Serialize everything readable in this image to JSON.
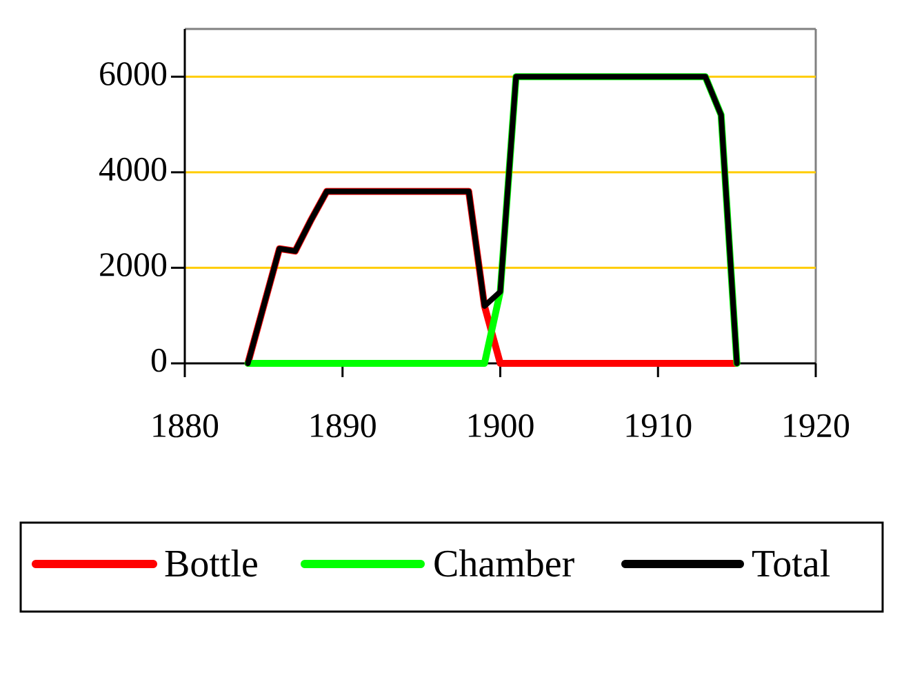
{
  "chart_data": {
    "type": "line",
    "x": [
      1884,
      1885,
      1886,
      1887,
      1888,
      1889,
      1890,
      1891,
      1892,
      1893,
      1894,
      1895,
      1896,
      1897,
      1898,
      1899,
      1900,
      1901,
      1902,
      1903,
      1904,
      1905,
      1906,
      1907,
      1908,
      1909,
      1910,
      1911,
      1912,
      1913,
      1914,
      1915
    ],
    "series": [
      {
        "name": "Bottle",
        "color": "#ff0000",
        "values": [
          0,
          1200,
          2400,
          2350,
          3000,
          3600,
          3600,
          3600,
          3600,
          3600,
          3600,
          3600,
          3600,
          3600,
          3600,
          1200,
          0,
          0,
          0,
          0,
          0,
          0,
          0,
          0,
          0,
          0,
          0,
          0,
          0,
          0,
          0,
          0
        ]
      },
      {
        "name": "Chamber",
        "color": "#00ff00",
        "values": [
          0,
          0,
          0,
          0,
          0,
          0,
          0,
          0,
          0,
          0,
          0,
          0,
          0,
          0,
          0,
          0,
          1500,
          6000,
          6000,
          6000,
          6000,
          6000,
          6000,
          6000,
          6000,
          6000,
          6000,
          6000,
          6000,
          6000,
          5200,
          0
        ]
      },
      {
        "name": "Total",
        "color": "#000000",
        "values": [
          0,
          1200,
          2400,
          2350,
          3000,
          3600,
          3600,
          3600,
          3600,
          3600,
          3600,
          3600,
          3600,
          3600,
          3600,
          1200,
          1500,
          6000,
          6000,
          6000,
          6000,
          6000,
          6000,
          6000,
          6000,
          6000,
          6000,
          6000,
          6000,
          6000,
          5200,
          0
        ]
      }
    ],
    "xlim": [
      1880,
      1920
    ],
    "xticks": [
      1880,
      1890,
      1900,
      1910,
      1920
    ],
    "ylim": [
      0,
      7000
    ],
    "yticks": [
      0,
      2000,
      4000,
      6000
    ],
    "grid": true,
    "grid_color": "#ffcc00",
    "legend": "bottom"
  }
}
